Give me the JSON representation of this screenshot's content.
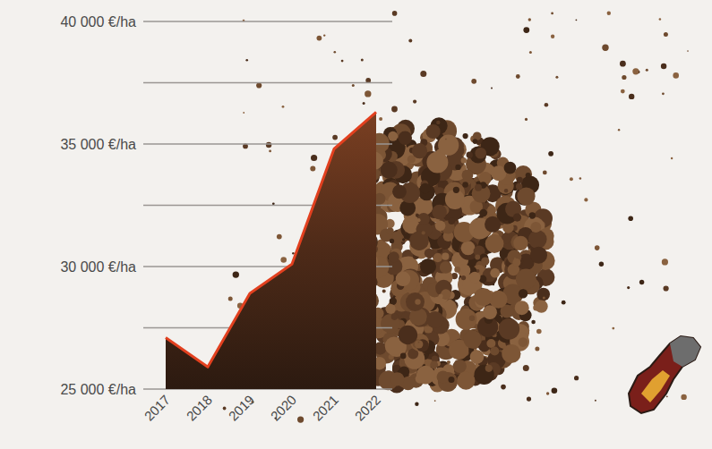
{
  "chart_data": {
    "type": "area",
    "categories": [
      "2017",
      "2018",
      "2019",
      "2020",
      "2021",
      "2022"
    ],
    "values": [
      27100,
      25900,
      28900,
      30100,
      34800,
      36300
    ],
    "color": "#e2401f",
    "ylim": [
      25000,
      40000
    ],
    "yticks": [
      {
        "value": 25000,
        "label": "25 000 €/ha"
      },
      {
        "value": 30000,
        "label": "30 000 €/ha"
      },
      {
        "value": 35000,
        "label": "35 000 €/ha"
      },
      {
        "value": 40000,
        "label": "40 000 €/ha"
      }
    ],
    "grid": true
  }
}
